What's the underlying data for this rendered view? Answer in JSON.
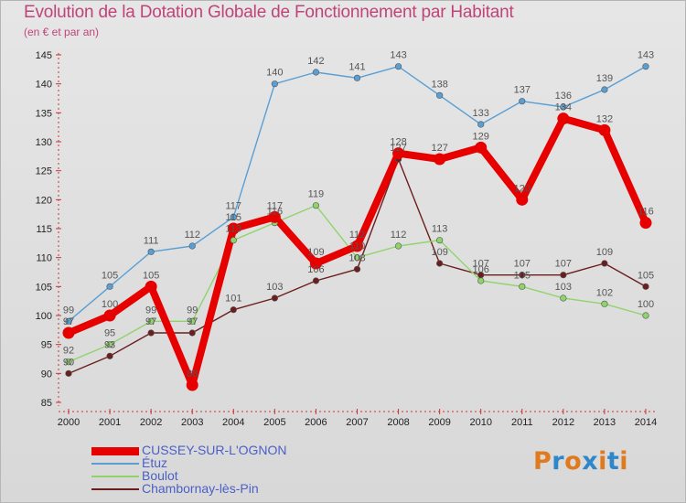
{
  "title": "Evolution de la Dotation Globale de Fonctionnement par Habitant",
  "subtitle": "(en € et par an)",
  "logo": {
    "text": "Proxiti",
    "colors": [
      "#e07a1e",
      "#2f86c9",
      "#e07a1e",
      "#2f86c9",
      "#e07a1e",
      "#2f86c9",
      "#e07a1e"
    ]
  },
  "chart_data": {
    "type": "line",
    "title": "Evolution de la Dotation Globale de Fonctionnement par Habitant",
    "subtitle": "(en € et par an)",
    "x": [
      "2000",
      "2001",
      "2002",
      "2003",
      "2004",
      "2005",
      "2006",
      "2007",
      "2008",
      "2009",
      "2010",
      "2011",
      "2012",
      "2013",
      "2014"
    ],
    "ylim": [
      85,
      145
    ],
    "yticks": [
      85,
      90,
      95,
      100,
      105,
      110,
      115,
      120,
      125,
      130,
      135,
      140,
      145
    ],
    "grid": false,
    "legend_position": "bottom-left",
    "series": [
      {
        "name": "CUSSEY-SUR-L'OGNON",
        "color": "#e60000",
        "values": [
          97,
          100,
          105,
          88,
          115,
          117,
          109,
          112,
          128,
          127,
          129,
          120,
          134,
          132,
          116
        ]
      },
      {
        "name": "Étuz",
        "color": "#5a9fd4",
        "values": [
          99,
          105,
          111,
          112,
          117,
          140,
          142,
          141,
          143,
          138,
          133,
          137,
          136,
          139,
          143
        ]
      },
      {
        "name": "Boulot",
        "color": "#8fd46a",
        "values": [
          92,
          95,
          99,
          99,
          113,
          116,
          119,
          110,
          112,
          113,
          106,
          105,
          103,
          102,
          100
        ]
      },
      {
        "name": "Chambornay-lès-Pin",
        "color": "#6b1e1e",
        "values": [
          90,
          93,
          97,
          97,
          101,
          103,
          106,
          108,
          127,
          109,
          107,
          107,
          107,
          109,
          105
        ]
      }
    ]
  }
}
